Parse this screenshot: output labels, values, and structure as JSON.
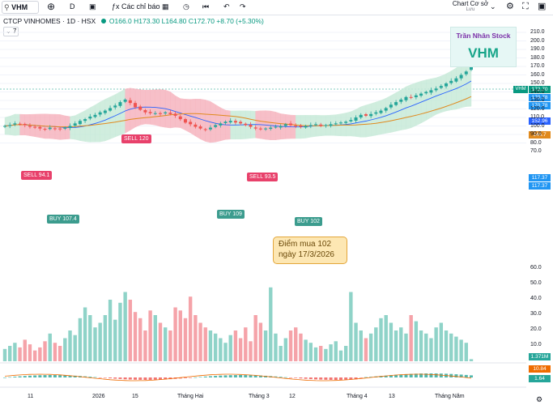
{
  "toolbar": {
    "symbol": "VHM",
    "search_icon": "search-icon",
    "interval": "D",
    "indicators_label": "Các chỉ báo",
    "layout_name": "Chart Cơ sở",
    "layout_sub": "Lưu"
  },
  "legend": {
    "title": "CTCP VINHOMES · 1D · HSX",
    "open": "O166.0",
    "high": "H173.30",
    "low": "L164.80",
    "close": "C172.70",
    "change": "+8.70 (+5.30%)",
    "collapsed_count": "7"
  },
  "brand": {
    "line1": "Trần Nhân Stock",
    "line2": "VHM"
  },
  "note": {
    "line1": "Điểm mua 102",
    "line2": "ngày 17/3/2026"
  },
  "signals": [
    {
      "label": "SELL 94.1",
      "kind": "sell"
    },
    {
      "label": "BUY 107.4",
      "kind": "buy"
    },
    {
      "label": "SELL 120",
      "kind": "sell"
    },
    {
      "label": "BUY 109",
      "kind": "buy"
    },
    {
      "label": "SELL 93.5",
      "kind": "sell"
    },
    {
      "label": "BUY 102",
      "kind": "buy"
    }
  ],
  "price_axis": [
    "210.0",
    "200.0",
    "190.0",
    "180.0",
    "170.0",
    "160.0",
    "150.0",
    "140.0",
    "130.0",
    "120.0",
    "110.0",
    "100.0",
    "90.0",
    "80.0",
    "70.0",
    "60.0",
    "50.0",
    "40.0",
    "30.0",
    "20.0",
    "10.0"
  ],
  "price_tags": {
    "vhm_label": "VHM",
    "last": "172.70",
    "bb_upper": "170.78",
    "bb_upper2": "170.78",
    "ma20": "152.96",
    "ma50": "144.7",
    "lower1": "117.37",
    "lower2": "117.37",
    "volume": "1.371M",
    "macd1": "10.84",
    "macd2": "1.64"
  },
  "time_axis": [
    "11",
    "2026",
    "15",
    "Tháng Hai",
    "Tháng 3",
    "12",
    "Tháng 4",
    "13",
    "Tháng Năm"
  ],
  "colors": {
    "up": "#26a69a",
    "down": "#ef5350",
    "band_up": "#c8ead9",
    "band_down": "#f6b5bf",
    "ma20": "#2962ff",
    "ma50": "#e08a1e"
  },
  "chart_data": {
    "type": "candlestick",
    "ohlc_last": {
      "open": 166.0,
      "high": 173.3,
      "low": 164.8,
      "close": 172.7
    },
    "close": [
      100,
      101,
      103,
      102,
      101,
      99,
      98,
      97,
      96,
      98,
      97,
      96,
      98,
      100,
      103,
      106,
      108,
      111,
      113,
      116,
      118,
      121,
      124,
      128,
      131,
      127,
      122,
      119,
      116,
      115,
      115,
      114,
      116,
      114,
      112,
      108,
      104,
      102,
      99,
      97,
      96,
      98,
      101,
      103,
      105,
      106,
      104,
      103,
      101,
      99,
      97,
      96,
      97,
      98,
      99,
      100,
      102,
      101,
      100,
      99,
      100,
      101,
      102,
      100,
      101,
      102,
      103,
      104,
      105,
      107,
      110,
      113,
      112,
      114,
      116,
      118,
      121,
      125,
      128,
      131,
      134,
      133,
      136,
      138,
      140,
      142,
      144,
      147,
      150,
      153,
      156,
      160,
      164,
      172.7
    ],
    "volume_m": [
      8,
      10,
      12,
      9,
      14,
      11,
      7,
      9,
      13,
      18,
      12,
      10,
      15,
      20,
      17,
      28,
      35,
      30,
      22,
      25,
      30,
      40,
      27,
      38,
      45,
      40,
      32,
      28,
      20,
      33,
      30,
      25,
      22,
      20,
      35,
      33,
      28,
      42,
      30,
      25,
      22,
      20,
      18,
      15,
      12,
      17,
      20,
      15,
      22,
      13,
      30,
      25,
      20,
      48,
      18,
      10,
      15,
      20,
      22,
      18,
      14,
      12,
      9,
      10,
      8,
      11,
      13,
      7,
      10,
      45,
      25,
      20,
      15,
      18,
      22,
      28,
      30,
      25,
      20,
      22,
      18,
      30,
      26,
      20,
      18,
      15,
      22,
      25,
      20,
      18,
      16,
      14,
      12,
      1.371
    ]
  }
}
